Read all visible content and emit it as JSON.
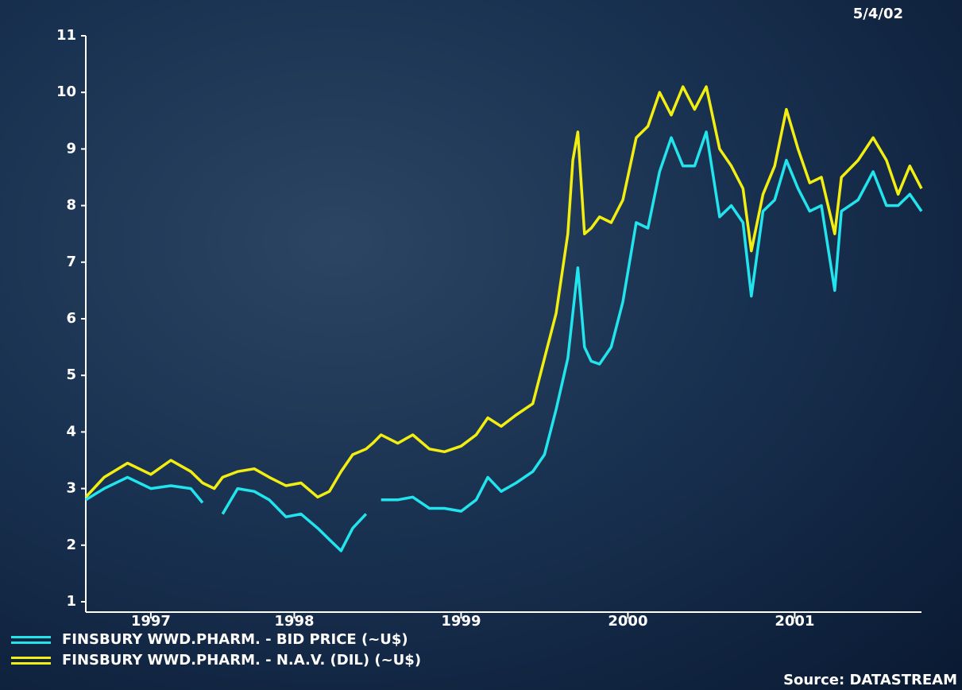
{
  "chart_data": {
    "type": "line",
    "date": "5/4/02",
    "source": "Source: DATASTREAM",
    "x": [
      1997.23,
      1997.34,
      1997.48,
      1997.62,
      1997.74,
      1997.86,
      1997.93,
      1998.0,
      1998.05,
      1998.14,
      1998.24,
      1998.33,
      1998.43,
      1998.52,
      1998.62,
      1998.69,
      1998.76,
      1998.83,
      1998.91,
      1998.95,
      1999.0,
      1999.1,
      1999.19,
      1999.29,
      1999.38,
      1999.48,
      1999.57,
      1999.64,
      1999.72,
      1999.81,
      1999.91,
      1999.98,
      2000.05,
      2000.12,
      2000.15,
      2000.18,
      2000.22,
      2000.26,
      2000.31,
      2000.38,
      2000.45,
      2000.53,
      2000.6,
      2000.67,
      2000.74,
      2000.81,
      2000.88,
      2000.95,
      2001.03,
      2001.1,
      2001.17,
      2001.22,
      2001.29,
      2001.36,
      2001.43,
      2001.5,
      2001.57,
      2001.64,
      2001.72,
      2001.76,
      2001.86,
      2001.95,
      2002.03,
      2002.1,
      2002.17,
      2002.24
    ],
    "series": [
      {
        "name": "FINSBURY WWD.PHARM. - BID PRICE (~U$)",
        "color": "#22e4ec",
        "values": [
          2.8,
          3.0,
          3.2,
          3.0,
          3.05,
          3.0,
          2.75,
          null,
          2.55,
          3.0,
          2.95,
          2.8,
          2.5,
          2.55,
          2.3,
          2.1,
          1.9,
          2.3,
          2.55,
          null,
          2.8,
          2.8,
          2.85,
          2.65,
          2.65,
          2.6,
          2.8,
          3.2,
          2.95,
          3.1,
          3.3,
          3.6,
          4.4,
          5.3,
          6.1,
          6.9,
          5.5,
          5.25,
          5.2,
          5.5,
          6.3,
          7.7,
          7.6,
          8.6,
          9.2,
          8.7,
          8.7,
          9.3,
          7.8,
          8.0,
          7.7,
          6.4,
          7.9,
          8.1,
          8.8,
          8.3,
          7.9,
          8.0,
          6.5,
          7.9,
          8.1,
          8.6,
          8.0,
          8.0,
          8.2,
          7.9
        ]
      },
      {
        "name": "FINSBURY WWD.PHARM. - N.A.V. (DIL) (~U$)",
        "color": "#f2ee12",
        "values": [
          2.85,
          3.2,
          3.45,
          3.25,
          3.5,
          3.3,
          3.1,
          3.0,
          3.2,
          3.3,
          3.35,
          3.2,
          3.05,
          3.1,
          2.85,
          2.95,
          3.3,
          3.6,
          3.7,
          3.8,
          3.95,
          3.8,
          3.95,
          3.7,
          3.65,
          3.75,
          3.95,
          4.25,
          4.1,
          4.3,
          4.5,
          5.3,
          6.1,
          7.5,
          8.8,
          9.3,
          7.5,
          7.6,
          7.8,
          7.7,
          8.1,
          9.2,
          9.4,
          10.0,
          9.6,
          10.1,
          9.7,
          10.1,
          9.0,
          8.7,
          8.3,
          7.2,
          8.2,
          8.7,
          9.7,
          9.0,
          8.4,
          8.5,
          7.5,
          8.5,
          8.8,
          9.2,
          8.8,
          8.2,
          8.7,
          8.3
        ]
      }
    ],
    "xlim": [
      1997.23,
      2002.24
    ],
    "xticks": [
      {
        "value": 1997.62,
        "label": "1997"
      },
      {
        "value": 1998.48,
        "label": "1998"
      },
      {
        "value": 1999.48,
        "label": "1999"
      },
      {
        "value": 2000.48,
        "label": "2000"
      },
      {
        "value": 2001.48,
        "label": "2001"
      }
    ],
    "ylim": [
      1,
      11
    ],
    "yticks": [
      1,
      2,
      3,
      4,
      5,
      6,
      7,
      8,
      9,
      10,
      11
    ]
  }
}
